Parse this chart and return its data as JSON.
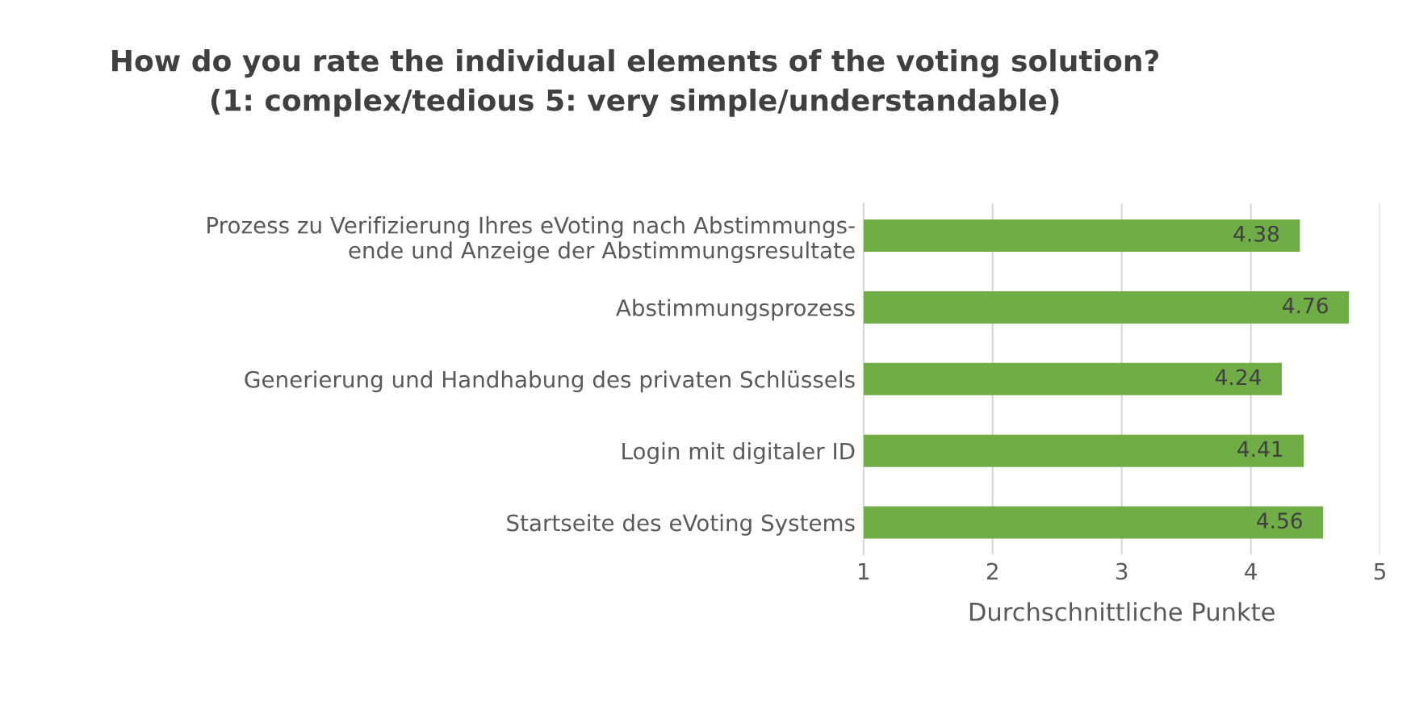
{
  "chart_data": {
    "type": "bar",
    "orientation": "horizontal",
    "title": "How do you rate the individual elements of the voting solution?\n(1: complex/tedious 5: very simple/understandable)",
    "xlabel": "Durchschnittliche Punkte",
    "categories": [
      "Prozess zu Verifizierung Ihres eVoting nach Abstimmungs-\nende und Anzeige der Abstimmungsresultate",
      "Abstimmungsprozess",
      "Generierung und Handhabung des privaten Schlüssels",
      "Login mit digitaler ID",
      "Startseite des eVoting Systems"
    ],
    "values": [
      4.38,
      4.76,
      4.24,
      4.41,
      4.56
    ],
    "color": "#70ad47",
    "xlim": [
      1,
      5
    ],
    "xticks": [
      1,
      2,
      3,
      4,
      5
    ],
    "grid": "x",
    "data_labels": true
  }
}
